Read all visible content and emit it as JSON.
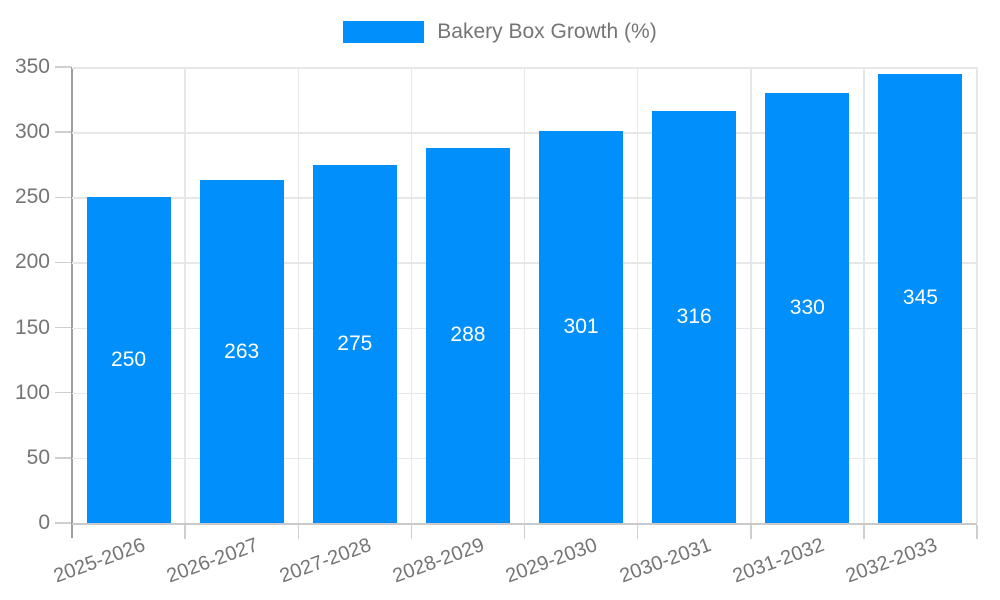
{
  "legend": {
    "label": "Bakery Box Growth (%)"
  },
  "chart_data": {
    "type": "bar",
    "title": "Bakery Box Growth (%)",
    "categories": [
      "2025-2026",
      "2026-2027",
      "2027-2028",
      "2028-2029",
      "2029-2030",
      "2030-2031",
      "2031-2032",
      "2032-2033"
    ],
    "values": [
      250,
      263,
      275,
      288,
      301,
      316,
      330,
      345
    ],
    "xlabel": "",
    "ylabel": "",
    "ylim": [
      0,
      350
    ],
    "yticks": [
      0,
      50,
      100,
      150,
      200,
      250,
      300,
      350
    ],
    "grid": true,
    "legend_position": "top",
    "value_labels": "centered-in-bar"
  },
  "colors": {
    "bar": "#008FFB",
    "value_label": "#ffffff",
    "axis_label": "#757575",
    "gridline": "#e7e7e7",
    "axis_line": "#9e9e9e",
    "tick": "#cfcfcf"
  }
}
